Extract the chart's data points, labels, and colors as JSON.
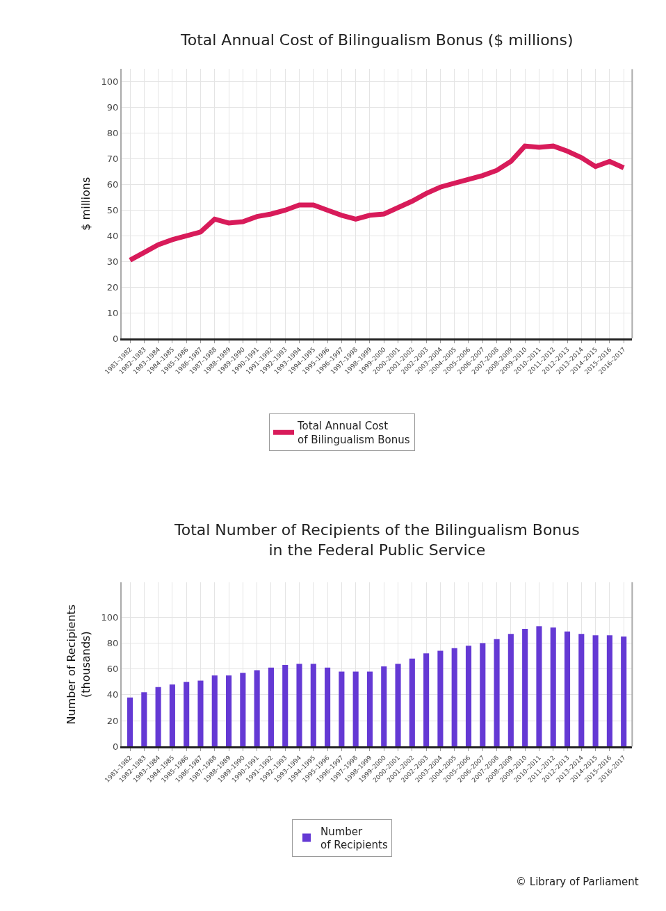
{
  "chart_data": [
    {
      "type": "line",
      "title": "Total Annual Cost of Bilingualism Bonus ($ millions)",
      "ylabel": "$ millions",
      "categories": [
        "1981–1982",
        "1982–1983",
        "1983–1984",
        "1984–1985",
        "1985–1986",
        "1986–1987",
        "1987–1988",
        "1988–1989",
        "1989–1990",
        "1990–1991",
        "1991–1992",
        "1992–1993",
        "1993–1994",
        "1994–1995",
        "1995–1996",
        "1996–1997",
        "1997–1998",
        "1998–1999",
        "1999–2000",
        "2000–2001",
        "2001–2002",
        "2002–2003",
        "2003–2004",
        "2004–2005",
        "2005–2006",
        "2006–2007",
        "2007–2008",
        "2008–2009",
        "2009–2010",
        "2010–2011",
        "2011–2012",
        "2012–2013",
        "2013–2014",
        "2014–2015",
        "2015–2016",
        "2016–2017"
      ],
      "series": [
        {
          "name": "Total Annual Cost\nof Bilingualism Bonus",
          "color": "#d81b5a",
          "values": [
            30.5,
            33.5,
            36.5,
            38.5,
            40,
            41.5,
            46.5,
            45,
            45.5,
            47.5,
            48.5,
            50,
            52,
            52,
            50,
            48,
            46.5,
            48,
            48.5,
            51,
            53.5,
            56.5,
            59,
            60.5,
            62,
            63.5,
            65.5,
            69,
            75,
            74.5,
            75,
            73,
            70.5,
            67,
            69,
            66.5
          ]
        }
      ],
      "ylim": [
        0,
        105
      ],
      "yticks": [
        0,
        10,
        20,
        30,
        40,
        50,
        60,
        70,
        80,
        90,
        100
      ],
      "grid": true,
      "legend": "bottom",
      "marker": "none",
      "line_style": "solid"
    },
    {
      "type": "bar",
      "title": "Total Number of Recipients of the Bilingualism Bonus\nin the Federal Public Service",
      "ylabel": "Number of Recipients\n(thousands)",
      "categories": [
        "1981–1982",
        "1982–1983",
        "1983–1984",
        "1984–1985",
        "1985–1986",
        "1986–1987",
        "1987–1988",
        "1988–1989",
        "1989–1990",
        "1990–1991",
        "1991–1992",
        "1992–1993",
        "1993–1994",
        "1994–1995",
        "1995–1996",
        "1996–1997",
        "1997–1998",
        "1998–1999",
        "1999–2000",
        "2000–2001",
        "2001–2002",
        "2002–2003",
        "2003–2004",
        "2004–2005",
        "2005–2006",
        "2006–2007",
        "2007–2008",
        "2008–2009",
        "2009–2010",
        "2010–2011",
        "2011–2012",
        "2012–2013",
        "2013–2014",
        "2014–2015",
        "2015–2016",
        "2016–2017"
      ],
      "series": [
        {
          "name": "Number\nof Recipients",
          "color": "#6439d4",
          "values": [
            38,
            42,
            46,
            48,
            50,
            51,
            55,
            55,
            57,
            59,
            61,
            63,
            64,
            64,
            61,
            58,
            58,
            58,
            62,
            64,
            68,
            72,
            74,
            76,
            78,
            80,
            83,
            87,
            91,
            93,
            92,
            89,
            87,
            86,
            86,
            85
          ]
        }
      ],
      "ylim": [
        0,
        127
      ],
      "yticks": [
        0,
        20,
        40,
        60,
        80,
        100
      ],
      "grid": true,
      "legend": "bottom",
      "annotations": [
        "© Library of Parliament"
      ]
    }
  ]
}
